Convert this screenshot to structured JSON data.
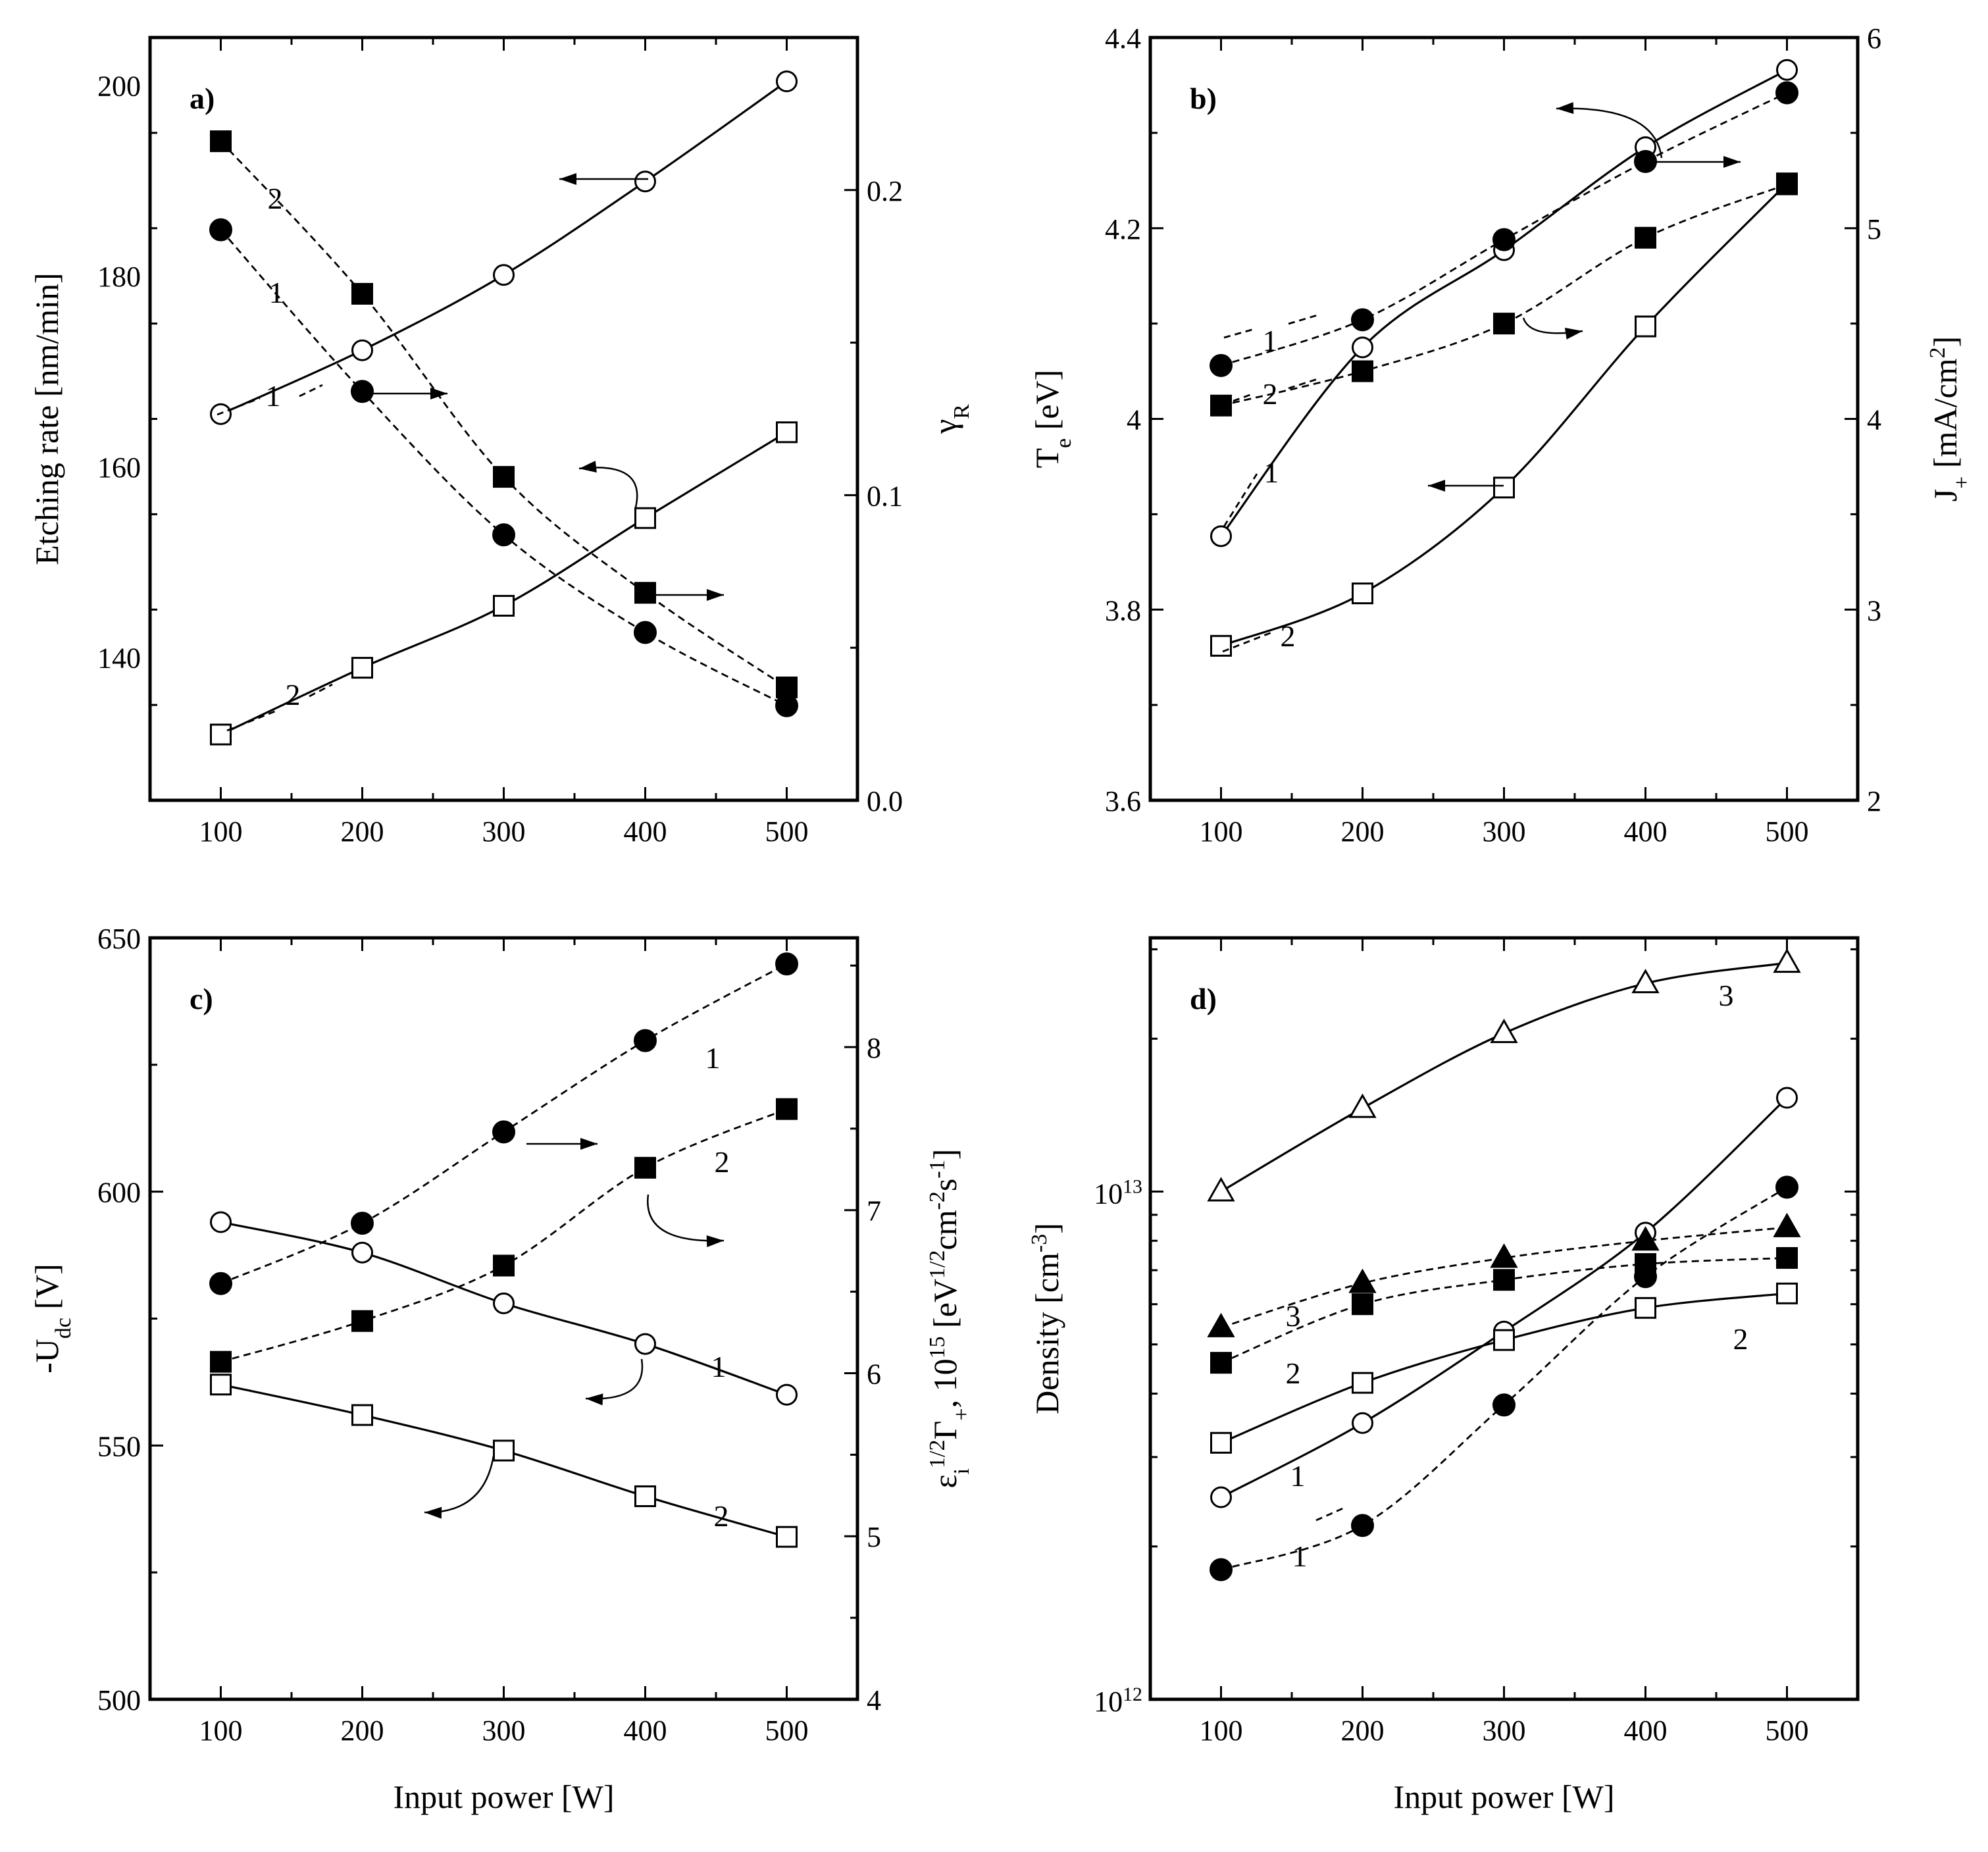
{
  "chart_data": [
    {
      "panel": "a)",
      "type": "line",
      "xlabel": "",
      "xlim": [
        50,
        550
      ],
      "xticks": [
        100,
        200,
        300,
        400,
        500
      ],
      "ylabel_left": "Etching rate [nm/min]",
      "ylim_left": [
        125,
        205
      ],
      "yticks_left": [
        140,
        160,
        180,
        200
      ],
      "ylabel_right": "γ_R",
      "ylim_right": [
        0,
        0.25
      ],
      "yticks_right": [
        0.0,
        0.1,
        0.2
      ],
      "series": [
        {
          "name": "1",
          "axis": "left",
          "marker": "circle-open",
          "fit": "solid",
          "x": [
            100,
            200,
            300,
            400,
            500
          ],
          "values": [
            165.5,
            172.2,
            180.1,
            189.9,
            200.4
          ]
        },
        {
          "name": "2",
          "axis": "left",
          "marker": "square-open",
          "fit": "solid",
          "x": [
            100,
            200,
            300,
            400,
            500
          ],
          "values": [
            131.9,
            138.9,
            145.4,
            154.6,
            163.6
          ]
        },
        {
          "name": "1",
          "axis": "right",
          "marker": "circle-filled",
          "fit": "dashed",
          "x": [
            100,
            200,
            300,
            400,
            500
          ],
          "values": [
            0.187,
            0.134,
            0.087,
            0.055,
            0.031
          ]
        },
        {
          "name": "2",
          "axis": "right",
          "marker": "square-filled",
          "fit": "dashed",
          "x": [
            100,
            200,
            300,
            400,
            500
          ],
          "values": [
            0.216,
            0.166,
            0.106,
            0.068,
            0.037
          ]
        }
      ]
    },
    {
      "panel": "b)",
      "type": "line",
      "xlabel": "",
      "xlim": [
        50,
        550
      ],
      "xticks": [
        100,
        200,
        300,
        400,
        500
      ],
      "ylabel_left": "T_e [eV]",
      "ylim_left": [
        3.6,
        4.4
      ],
      "yticks_left": [
        3.6,
        3.8,
        4.0,
        4.2,
        4.4
      ],
      "ylabel_right": "J_+ [mA/cm^2]",
      "ylim_right": [
        2,
        6
      ],
      "yticks_right": [
        2,
        3,
        4,
        5,
        6
      ],
      "series": [
        {
          "name": "1",
          "axis": "left",
          "marker": "circle-open",
          "fit": "solid",
          "x": [
            100,
            200,
            300,
            400,
            500
          ],
          "values": [
            3.877,
            4.075,
            4.177,
            4.285,
            4.366
          ]
        },
        {
          "name": "2",
          "axis": "left",
          "marker": "square-open",
          "fit": "solid",
          "x": [
            100,
            200,
            300,
            400,
            500
          ],
          "values": [
            3.762,
            3.817,
            3.928,
            4.097,
            4.247
          ]
        },
        {
          "name": "1",
          "axis": "right",
          "marker": "circle-filled",
          "fit": "dashed",
          "x": [
            100,
            200,
            300,
            400,
            500
          ],
          "values": [
            4.28,
            4.52,
            4.94,
            5.35,
            5.71
          ]
        },
        {
          "name": "2",
          "axis": "right",
          "marker": "square-filled",
          "fit": "dashed",
          "x": [
            100,
            200,
            300,
            400,
            500
          ],
          "values": [
            4.07,
            4.25,
            4.5,
            4.95,
            5.23
          ]
        }
      ]
    },
    {
      "panel": "c)",
      "type": "line",
      "xlabel": "Input power [W]",
      "xlim": [
        50,
        550
      ],
      "xticks": [
        100,
        200,
        300,
        400,
        500
      ],
      "ylabel_left": "-U_dc [V]",
      "ylim_left": [
        500,
        650
      ],
      "yticks_left": [
        500,
        550,
        600,
        650
      ],
      "ylabel_right": "ε_i^1/2 Γ_+, 10^15 [eV^1/2 cm^-2 s^-1]",
      "ylim_right": [
        4,
        8.67
      ],
      "yticks_right": [
        4,
        5,
        6,
        7,
        8
      ],
      "series": [
        {
          "name": "1",
          "axis": "left",
          "marker": "circle-open",
          "fit": "solid",
          "x": [
            100,
            200,
            300,
            400,
            500
          ],
          "values": [
            594.0,
            588.0,
            578.0,
            570.0,
            560.0
          ]
        },
        {
          "name": "2",
          "axis": "left",
          "marker": "square-open",
          "fit": "solid",
          "x": [
            100,
            200,
            300,
            400,
            500
          ],
          "values": [
            562.0,
            556.0,
            549.0,
            540.0,
            532.0
          ]
        },
        {
          "name": "1",
          "axis": "right",
          "marker": "circle-filled",
          "fit": "dashed",
          "x": [
            100,
            200,
            300,
            400,
            500
          ],
          "values": [
            6.55,
            6.92,
            7.48,
            8.04,
            8.51
          ]
        },
        {
          "name": "2",
          "axis": "right",
          "marker": "square-filled",
          "fit": "dashed",
          "x": [
            100,
            200,
            300,
            400,
            500
          ],
          "values": [
            6.07,
            6.32,
            6.66,
            7.26,
            7.62
          ]
        }
      ]
    },
    {
      "panel": "d)",
      "type": "line",
      "xlabel": "Input power [W]",
      "xlim": [
        50,
        550
      ],
      "xticks": [
        100,
        200,
        300,
        400,
        500
      ],
      "ylabel_left": "Density [cm^-3]",
      "yscale": "log",
      "ylim_left": [
        1000000000000.0,
        31600000000000.0
      ],
      "yticks_left": [
        1000000000000.0,
        10000000000000.0
      ],
      "ytick_labels": [
        {
          "mantissa": "10",
          "exp": "12"
        },
        {
          "mantissa": "10",
          "exp": "13"
        }
      ],
      "series": [
        {
          "name": "3",
          "marker": "triangle-open",
          "fit": "solid",
          "x": [
            100,
            200,
            300,
            400,
            500
          ],
          "values": [
            10000000000000.0,
            14600000000000.0,
            20500000000000.0,
            25700000000000.0,
            28200000000000.0
          ]
        },
        {
          "name": "1",
          "marker": "circle-open",
          "fit": "solid",
          "x": [
            100,
            200,
            300,
            400,
            500
          ],
          "values": [
            2500000000000.0,
            3500000000000.0,
            5300000000000.0,
            8300000000000.0,
            15300000000000.0
          ]
        },
        {
          "name": "2",
          "marker": "square-open",
          "fit": "solid",
          "x": [
            100,
            200,
            300,
            400,
            500
          ],
          "values": [
            3200000000000.0,
            4200000000000.0,
            5100000000000.0,
            5900000000000.0,
            6300000000000.0
          ]
        },
        {
          "name": "3",
          "marker": "triangle-filled",
          "fit": "dashed",
          "x": [
            100,
            200,
            300,
            400,
            500
          ],
          "values": [
            5400000000000.0,
            6600000000000.0,
            7400000000000.0,
            8000000000000.0,
            8500000000000.0
          ]
        },
        {
          "name": "2",
          "marker": "square-filled",
          "fit": "dashed",
          "x": [
            100,
            200,
            300,
            400,
            500
          ],
          "values": [
            4600000000000.0,
            6000000000000.0,
            6700000000000.0,
            7200000000000.0,
            7400000000000.0
          ]
        },
        {
          "name": "1",
          "marker": "circle-filled",
          "fit": "dashed",
          "x": [
            100,
            200,
            300,
            400,
            500
          ],
          "values": [
            1800000000000.0,
            2200000000000.0,
            3800000000000.0,
            6800000000000.0,
            10200000000000.0
          ]
        }
      ]
    }
  ]
}
